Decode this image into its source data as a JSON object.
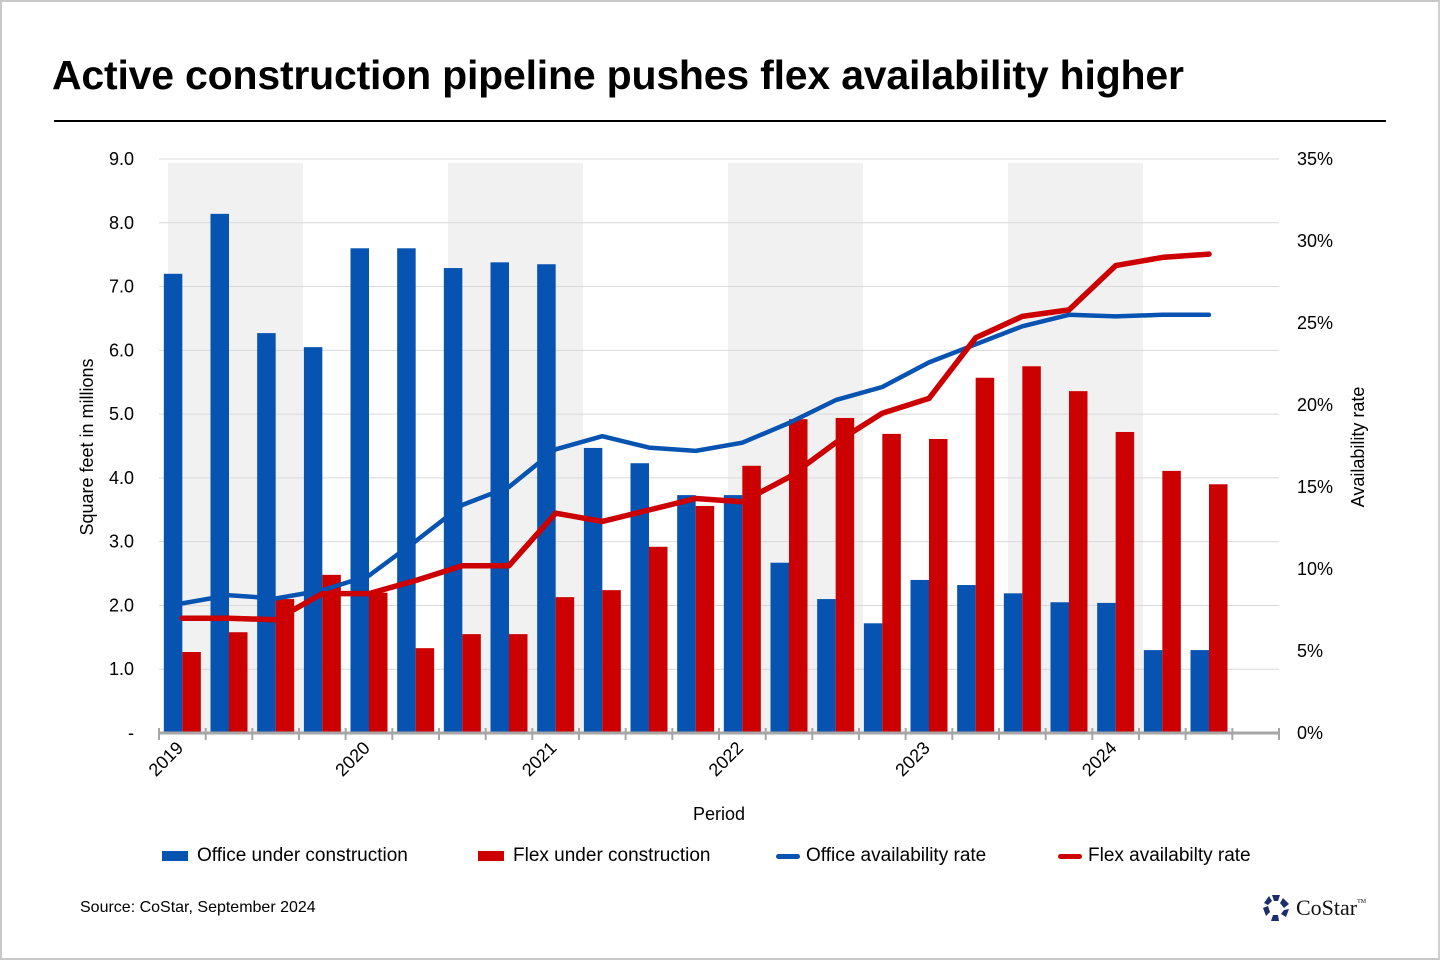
{
  "title": "Active construction pipeline pushes flex availability higher",
  "source": "Source: CoStar, September 2024",
  "logo": {
    "text": "CoStar",
    "trademark": "TM",
    "icon": "costar-star-icon"
  },
  "colors": {
    "office": "#0753b1",
    "flex": "#cc0000",
    "band": "#f1f1f1",
    "grid": "#d9d9d9",
    "axis": "#a6a6a6"
  },
  "chart_data": {
    "type": "bar",
    "title": "Active construction pipeline pushes flex availability higher",
    "xlabel": "Period",
    "ylabel": "Square feet in millions",
    "y2label": "Availability rate",
    "ylim": [
      0,
      9
    ],
    "y2lim": [
      0,
      35
    ],
    "yticks": [
      "-",
      "1.0",
      "2.0",
      "3.0",
      "4.0",
      "5.0",
      "6.0",
      "7.0",
      "8.0",
      "9.0"
    ],
    "y2ticks": [
      "0%",
      "5%",
      "10%",
      "15%",
      "20%",
      "25%",
      "30%",
      "35%"
    ],
    "grid": true,
    "legend_position": "bottom",
    "slot_count": 24,
    "year_labels": [
      {
        "label": "2019",
        "index": 0
      },
      {
        "label": "2020",
        "index": 4
      },
      {
        "label": "2021",
        "index": 8
      },
      {
        "label": "2022",
        "index": 12
      },
      {
        "label": "2023",
        "index": 16
      },
      {
        "label": "2024",
        "index": 20
      }
    ],
    "shaded_years": [
      0,
      6,
      12,
      18
    ],
    "categories": [
      "2019 Q1",
      "2019 Q2",
      "2019 Q3",
      "2019 Q4",
      "2020 Q1",
      "2020 Q2",
      "2020 Q3",
      "2020 Q4",
      "2021 Q1",
      "2021 Q2",
      "2021 Q3",
      "2021 Q4",
      "2022 Q1",
      "2022 Q2",
      "2022 Q3",
      "2022 Q4",
      "2023 Q1",
      "2023 Q2",
      "2023 Q3",
      "2023 Q4",
      "2024 Q1",
      "2024 Q2",
      "2024 Q3"
    ],
    "series": [
      {
        "name": "Office under construction",
        "type": "bar",
        "axis": "left",
        "color": "#0753b1",
        "values": [
          7.2,
          8.14,
          6.27,
          6.05,
          7.6,
          7.6,
          7.29,
          7.38,
          7.35,
          4.47,
          4.23,
          3.73,
          3.73,
          2.67,
          2.1,
          1.72,
          2.4,
          2.32,
          2.19,
          2.05,
          2.04,
          1.3,
          1.3
        ]
      },
      {
        "name": "Flex under construction",
        "type": "bar",
        "axis": "left",
        "color": "#cc0000",
        "values": [
          1.27,
          1.58,
          2.1,
          2.48,
          2.2,
          1.33,
          1.55,
          1.55,
          2.13,
          2.24,
          2.92,
          3.56,
          4.19,
          4.92,
          4.94,
          4.69,
          4.61,
          5.57,
          5.75,
          5.36,
          4.72,
          4.11,
          3.9
        ]
      },
      {
        "name": "Office availability rate",
        "type": "line",
        "axis": "right",
        "color": "#0753b1",
        "values": [
          7.9,
          8.4,
          8.2,
          8.7,
          9.6,
          11.7,
          13.9,
          15.0,
          17.3,
          18.1,
          17.4,
          17.2,
          17.7,
          18.9,
          20.3,
          21.1,
          22.6,
          23.7,
          24.8,
          25.5,
          25.4,
          25.5,
          25.5
        ]
      },
      {
        "name": "Flex availabilty rate",
        "type": "line",
        "axis": "right",
        "color": "#cc0000",
        "values": [
          7.0,
          7.0,
          6.9,
          8.5,
          8.5,
          9.3,
          10.2,
          10.2,
          13.4,
          12.9,
          13.6,
          14.3,
          14.1,
          15.6,
          17.7,
          19.5,
          20.4,
          24.1,
          25.4,
          25.8,
          28.5,
          29.0,
          29.2
        ]
      }
    ]
  },
  "legend": [
    {
      "label": "Office under construction",
      "kind": "bar",
      "color": "#0753b1"
    },
    {
      "label": "Flex under construction",
      "kind": "bar",
      "color": "#cc0000"
    },
    {
      "label": "Office availability rate",
      "kind": "line",
      "color": "#0753b1"
    },
    {
      "label": "Flex availabilty rate",
      "kind": "line",
      "color": "#cc0000"
    }
  ]
}
